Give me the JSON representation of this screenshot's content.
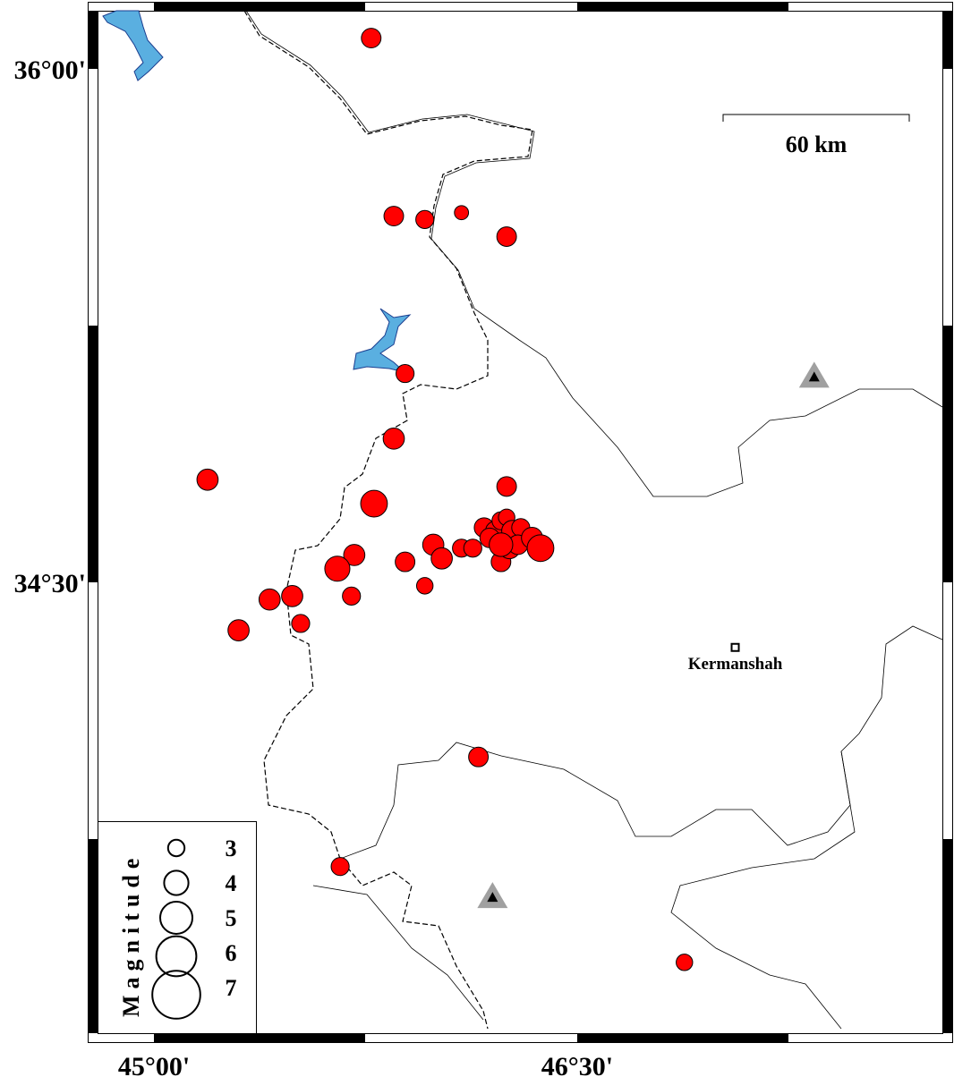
{
  "map": {
    "lon_range": [
      44.7,
      47.6
    ],
    "lat_range": [
      33.1,
      36.17
    ],
    "colors": {
      "event_fill": "#ff0000",
      "water": "#5aafe0",
      "station_outer": "#a0a0a0",
      "station_inner": "#000000",
      "border": "#000000"
    },
    "axis_labels": {
      "x": [
        {
          "value": 45.0,
          "label": "45°00'"
        },
        {
          "value": 46.5,
          "label": "46°30'"
        }
      ],
      "y": [
        {
          "value": 36.0,
          "label": "36°00'"
        },
        {
          "value": 34.5,
          "label": "34°30'"
        }
      ]
    },
    "scale_bar": {
      "label": "60 km"
    },
    "city": {
      "name": "Kermanshah",
      "lon": 47.06,
      "lat": 34.31,
      "icon": "square-marker-icon"
    },
    "stations": [
      {
        "lon": 47.34,
        "lat": 35.1,
        "icon": "triangle-station-icon"
      },
      {
        "lon": 46.2,
        "lat": 33.58,
        "icon": "triangle-station-icon"
      }
    ],
    "legend": {
      "title": "Magnitude",
      "magnitudes": [
        3,
        4,
        5,
        6,
        7
      ]
    },
    "events": [
      {
        "lon": 45.77,
        "lat": 36.09,
        "mag": 3.4
      },
      {
        "lon": 45.85,
        "lat": 35.57,
        "mag": 3.4
      },
      {
        "lon": 45.96,
        "lat": 35.56,
        "mag": 3.2
      },
      {
        "lon": 46.09,
        "lat": 35.58,
        "mag": 2.7
      },
      {
        "lon": 46.25,
        "lat": 35.51,
        "mag": 3.4
      },
      {
        "lon": 45.89,
        "lat": 35.11,
        "mag": 3.2
      },
      {
        "lon": 45.85,
        "lat": 34.92,
        "mag": 3.6
      },
      {
        "lon": 45.19,
        "lat": 34.8,
        "mag": 3.6
      },
      {
        "lon": 45.78,
        "lat": 34.73,
        "mag": 4.3
      },
      {
        "lon": 46.25,
        "lat": 34.78,
        "mag": 3.4
      },
      {
        "lon": 45.71,
        "lat": 34.58,
        "mag": 3.6
      },
      {
        "lon": 45.65,
        "lat": 34.54,
        "mag": 4.1
      },
      {
        "lon": 45.89,
        "lat": 34.56,
        "mag": 3.4
      },
      {
        "lon": 45.96,
        "lat": 34.49,
        "mag": 3.0
      },
      {
        "lon": 45.99,
        "lat": 34.61,
        "mag": 3.6
      },
      {
        "lon": 46.02,
        "lat": 34.57,
        "mag": 3.6
      },
      {
        "lon": 45.41,
        "lat": 34.45,
        "mag": 3.6
      },
      {
        "lon": 45.49,
        "lat": 34.46,
        "mag": 3.6
      },
      {
        "lon": 45.7,
        "lat": 34.46,
        "mag": 3.2
      },
      {
        "lon": 45.52,
        "lat": 34.38,
        "mag": 3.2
      },
      {
        "lon": 45.3,
        "lat": 34.36,
        "mag": 3.6
      },
      {
        "lon": 46.15,
        "lat": 33.99,
        "mag": 3.4
      },
      {
        "lon": 45.66,
        "lat": 33.67,
        "mag": 3.2
      },
      {
        "lon": 46.88,
        "lat": 33.39,
        "mag": 3.0
      },
      {
        "lon": 46.09,
        "lat": 34.6,
        "mag": 3.2
      },
      {
        "lon": 46.13,
        "lat": 34.6,
        "mag": 3.2
      },
      {
        "lon": 46.17,
        "lat": 34.66,
        "mag": 3.4
      },
      {
        "lon": 46.21,
        "lat": 34.65,
        "mag": 3.4
      },
      {
        "lon": 46.23,
        "lat": 34.68,
        "mag": 3.2
      },
      {
        "lon": 46.25,
        "lat": 34.69,
        "mag": 3.0
      },
      {
        "lon": 46.23,
        "lat": 34.56,
        "mag": 3.4
      },
      {
        "lon": 46.19,
        "lat": 34.63,
        "mag": 3.4
      },
      {
        "lon": 46.27,
        "lat": 34.65,
        "mag": 3.6
      },
      {
        "lon": 46.3,
        "lat": 34.66,
        "mag": 3.2
      },
      {
        "lon": 46.26,
        "lat": 34.6,
        "mag": 3.6
      },
      {
        "lon": 46.29,
        "lat": 34.61,
        "mag": 3.4
      },
      {
        "lon": 46.34,
        "lat": 34.63,
        "mag": 3.6
      },
      {
        "lon": 46.37,
        "lat": 34.6,
        "mag": 4.3
      },
      {
        "lon": 46.23,
        "lat": 34.61,
        "mag": 3.9
      }
    ]
  }
}
